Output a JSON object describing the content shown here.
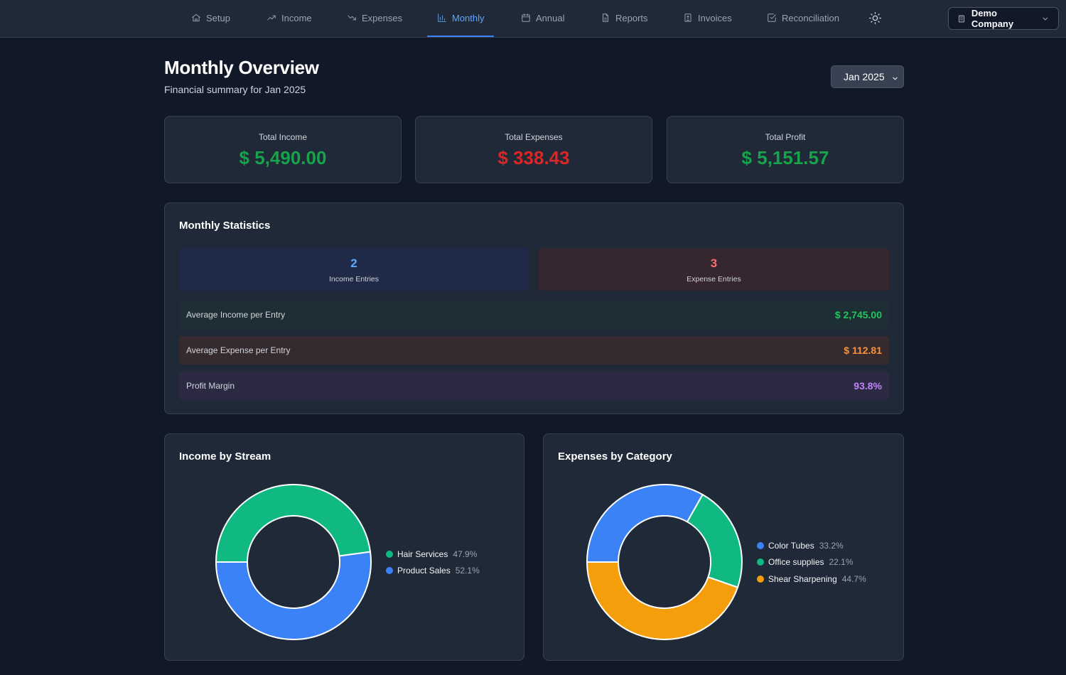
{
  "nav": {
    "items": [
      {
        "label": "Setup",
        "icon": "home-icon"
      },
      {
        "label": "Income",
        "icon": "trending-up-icon"
      },
      {
        "label": "Expenses",
        "icon": "trending-down-icon"
      },
      {
        "label": "Monthly",
        "icon": "bar-chart-icon",
        "active": true
      },
      {
        "label": "Annual",
        "icon": "calendar-icon"
      },
      {
        "label": "Reports",
        "icon": "file-text-icon"
      },
      {
        "label": "Invoices",
        "icon": "invoice-icon"
      },
      {
        "label": "Reconciliation",
        "icon": "check-square-icon"
      }
    ],
    "theme_icon": "sun-icon",
    "company": "Demo Company"
  },
  "header": {
    "title": "Monthly Overview",
    "subtitle": "Financial summary for Jan 2025",
    "month_selected": "Jan 2025"
  },
  "summary": {
    "income_label": "Total Income",
    "income_value": "$ 5,490.00",
    "expenses_label": "Total Expenses",
    "expenses_value": "$ 338.43",
    "profit_label": "Total Profit",
    "profit_value": "$ 5,151.57"
  },
  "colors": {
    "income": "#16a34a",
    "expense": "#dc2626",
    "profit": "#16a34a",
    "accent": "#3b82f6"
  },
  "stats": {
    "title": "Monthly Statistics",
    "income_entries_count": "2",
    "income_entries_label": "Income Entries",
    "expense_entries_count": "3",
    "expense_entries_label": "Expense Entries",
    "avg_income_label": "Average Income per Entry",
    "avg_income_value": "$ 2,745.00",
    "avg_expense_label": "Average Expense per Entry",
    "avg_expense_value": "$ 112.81",
    "profit_margin_label": "Profit Margin",
    "profit_margin_value": "93.8%"
  },
  "income_chart": {
    "title": "Income by Stream",
    "legend": [
      {
        "name": "Hair Services",
        "pct": "47.9%"
      },
      {
        "name": "Product Sales",
        "pct": "52.1%"
      }
    ]
  },
  "expense_chart": {
    "title": "Expenses by Category",
    "legend": [
      {
        "name": "Color Tubes",
        "pct": "33.2%"
      },
      {
        "name": "Office supplies",
        "pct": "22.1%"
      },
      {
        "name": "Shear Sharpening",
        "pct": "44.7%"
      }
    ]
  },
  "chart_data": [
    {
      "type": "pie",
      "title": "Income by Stream",
      "categories": [
        "Hair Services",
        "Product Sales"
      ],
      "values": [
        47.9,
        52.1
      ],
      "colors": [
        "#10b981",
        "#3b82f6"
      ]
    },
    {
      "type": "pie",
      "title": "Expenses by Category",
      "categories": [
        "Color Tubes",
        "Office supplies",
        "Shear Sharpening"
      ],
      "values": [
        33.2,
        22.1,
        44.7
      ],
      "colors": [
        "#3b82f6",
        "#10b981",
        "#f59e0b"
      ]
    }
  ]
}
